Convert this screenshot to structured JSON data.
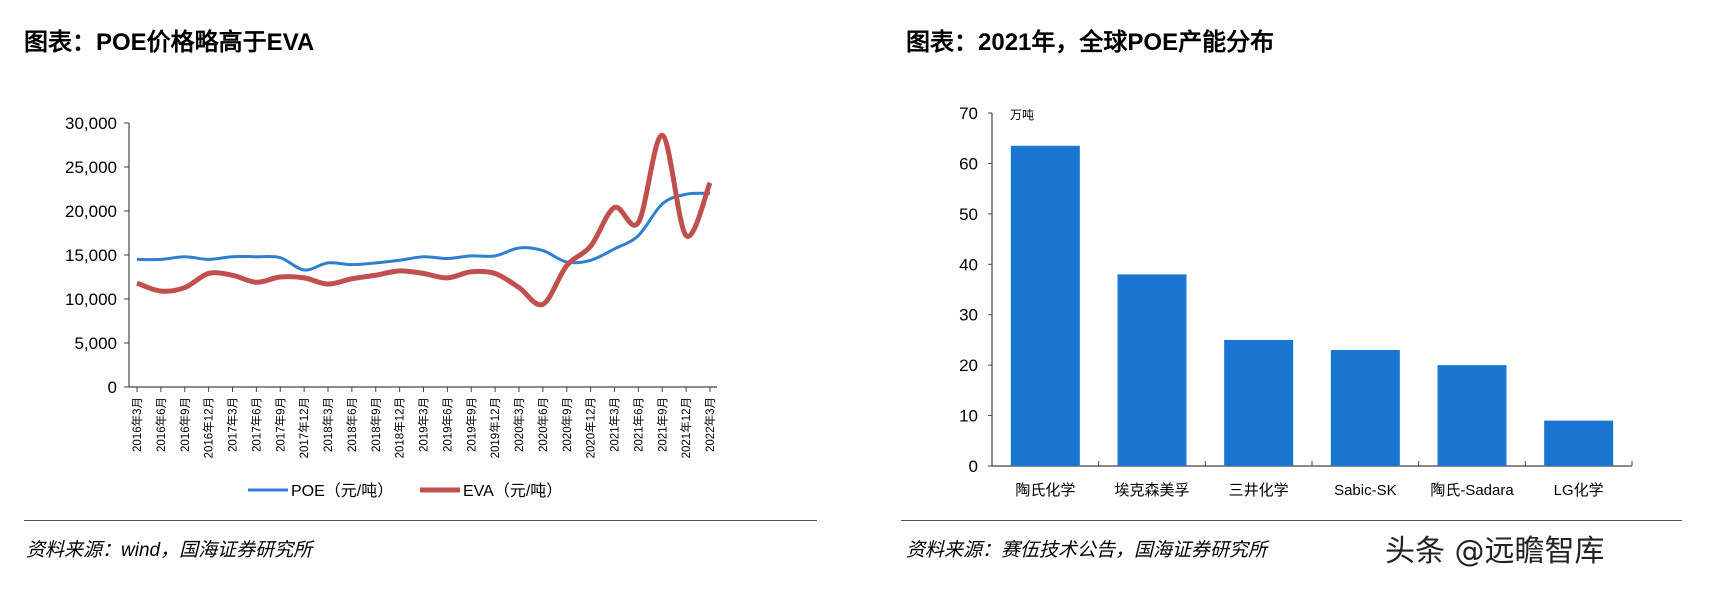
{
  "left": {
    "title": "图表：POE价格略高于EVA",
    "source": "资料来源：wind，国海证券研究所"
  },
  "right": {
    "title": "图表：2021年，全球POE产能分布",
    "source": "资料来源：赛伍技术公告，国海证券研究所"
  },
  "watermark": "头条 @远瞻智库",
  "chart_data": [
    {
      "type": "line",
      "categories": [
        "2016年3月",
        "2016年6月",
        "2016年9月",
        "2016年12月",
        "2017年3月",
        "2017年6月",
        "2017年9月",
        "2017年12月",
        "2018年3月",
        "2018年6月",
        "2018年9月",
        "2018年12月",
        "2019年3月",
        "2019年6月",
        "2019年9月",
        "2019年12月",
        "2020年3月",
        "2020年6月",
        "2020年9月",
        "2020年12月",
        "2021年3月",
        "2021年6月",
        "2021年9月",
        "2021年12月",
        "2022年3月"
      ],
      "series": [
        {
          "name": "POE（元/吨）",
          "color": "#2f7fd0",
          "values": [
            14500,
            14500,
            14800,
            14500,
            14800,
            14800,
            14700,
            13300,
            14100,
            13900,
            14100,
            14400,
            14800,
            14600,
            14900,
            14900,
            15800,
            15500,
            14200,
            14400,
            15700,
            17200,
            20800,
            21900,
            22000
          ]
        },
        {
          "name": "EVA（元/吨）",
          "color": "#c0504d",
          "values": [
            11800,
            10900,
            11300,
            12900,
            12700,
            11900,
            12500,
            12400,
            11700,
            12300,
            12700,
            13200,
            12900,
            12400,
            13100,
            12900,
            11300,
            9400,
            13800,
            16000,
            20400,
            18700,
            28600,
            17200,
            23200
          ]
        }
      ],
      "ylim": [
        0,
        30000
      ],
      "yticks": [
        "0",
        "5,000",
        "10,000",
        "15,000",
        "20,000",
        "25,000",
        "30,000"
      ],
      "legend": "bottom",
      "grid": false
    },
    {
      "type": "bar",
      "categories": [
        "陶氏化学",
        "埃克森美孚",
        "三井化学",
        "Sabic-SK",
        "陶氏-Sadara",
        "LG化学"
      ],
      "values": [
        63.5,
        38,
        25,
        23,
        20,
        9
      ],
      "color": "#1a76d2",
      "ylabel": "万吨",
      "ylim": [
        0,
        70
      ],
      "yticks": [
        "0",
        "10",
        "20",
        "30",
        "40",
        "50",
        "60",
        "70"
      ],
      "grid": false
    }
  ]
}
